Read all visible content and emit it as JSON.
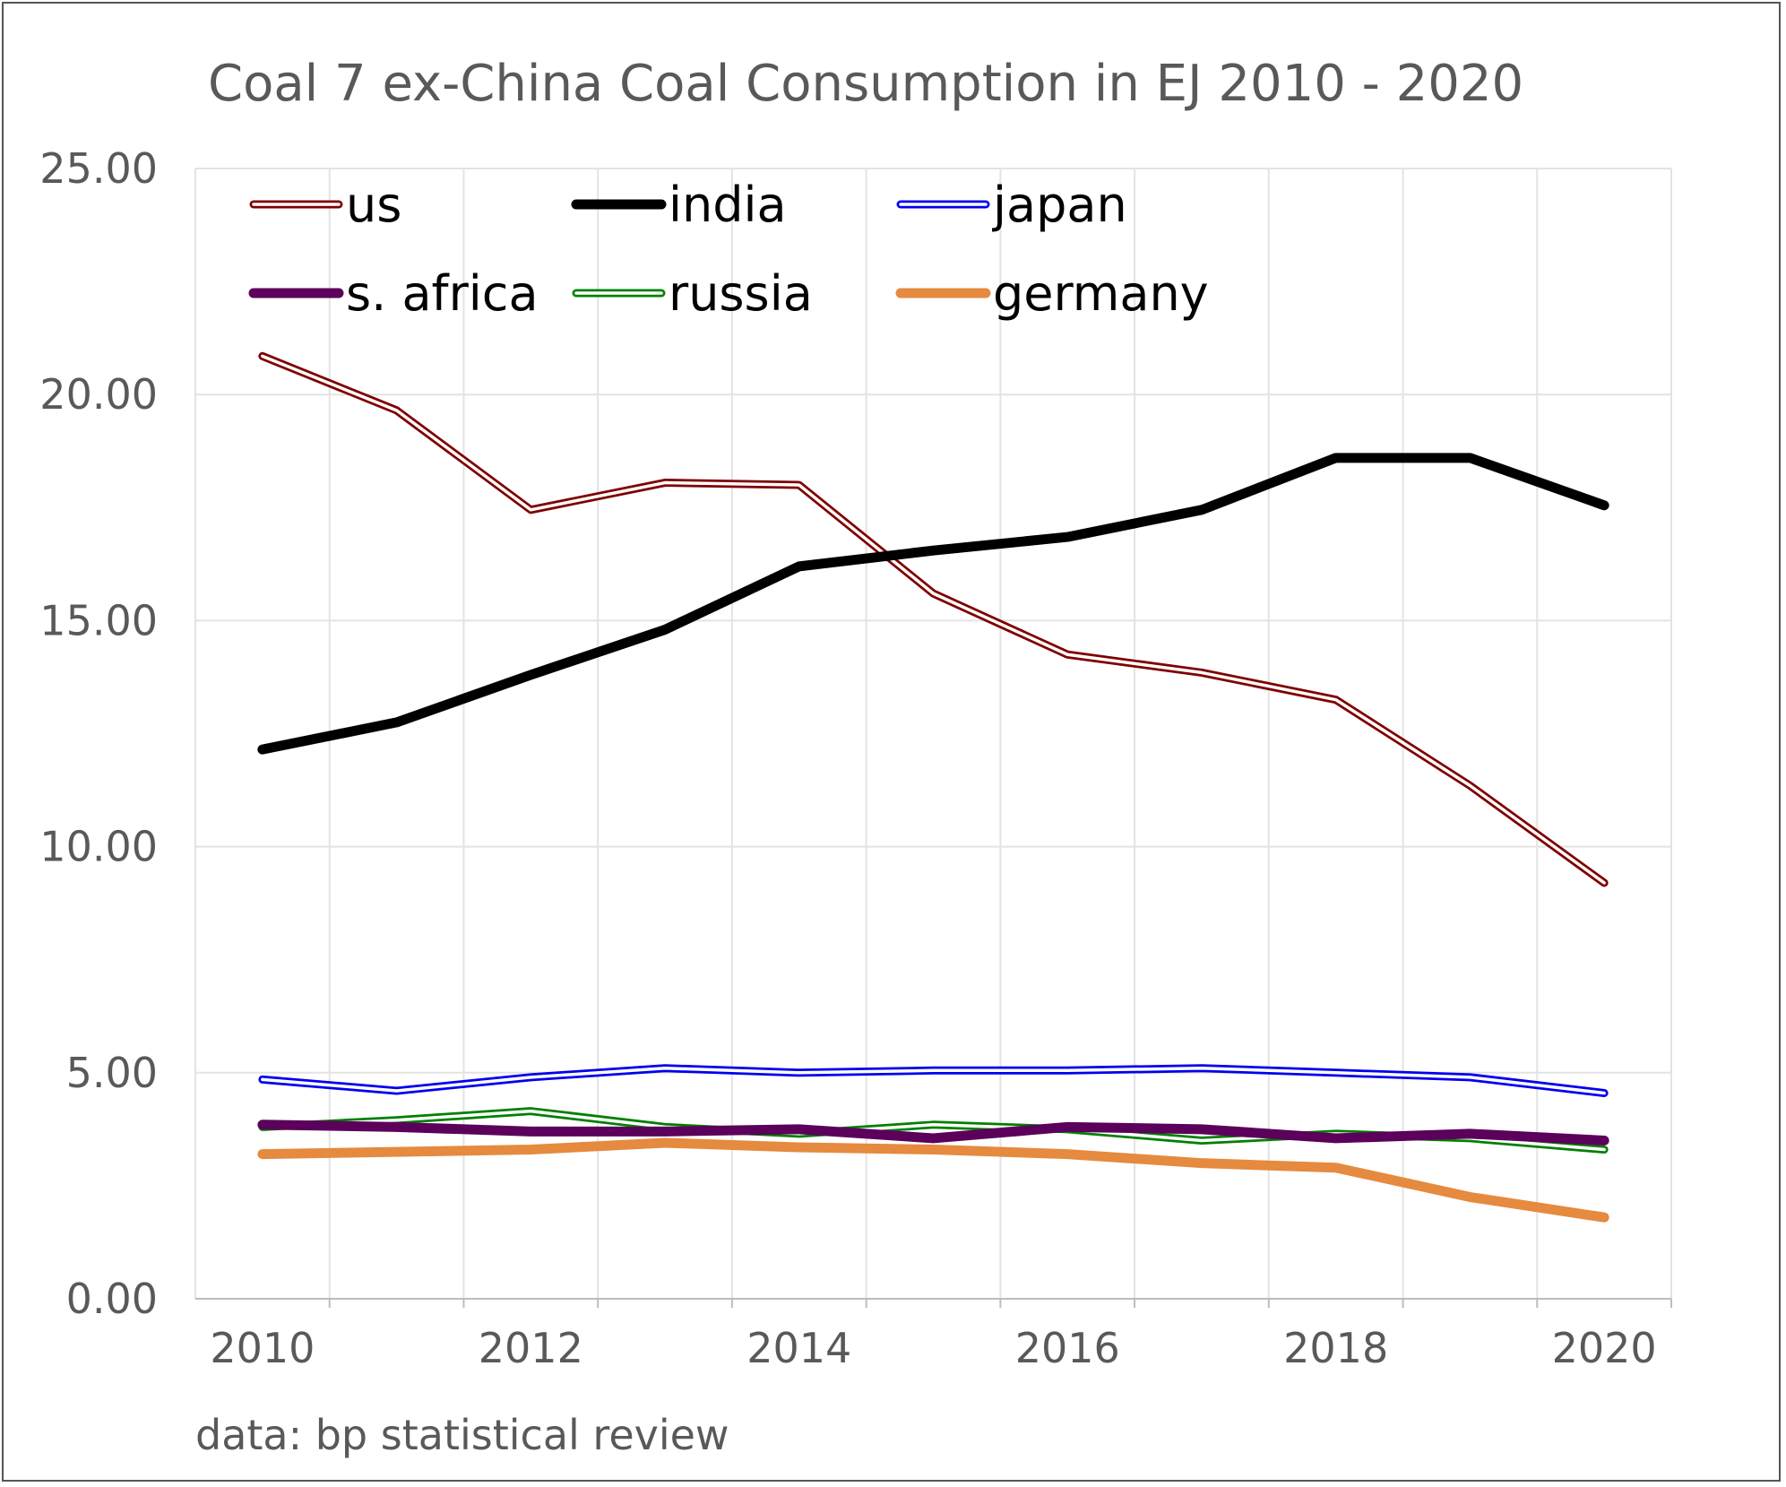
{
  "chart_data": {
    "type": "line",
    "title": "Coal 7 ex-China Coal Consumption in EJ 2010 - 2020",
    "xlabel": "",
    "ylabel": "",
    "source_note": "data: bp statistical review",
    "x": [
      2010,
      2011,
      2012,
      2013,
      2014,
      2015,
      2016,
      2017,
      2018,
      2019,
      2020
    ],
    "xlim": [
      2009.5,
      2020.5
    ],
    "ylim": [
      0,
      25
    ],
    "ytick_labels": [
      "0.00",
      "5.00",
      "10.00",
      "15.00",
      "20.00",
      "25.00"
    ],
    "xtick_labels": [
      "2010",
      "2012",
      "2014",
      "2016",
      "2018",
      "2020"
    ],
    "grid": "on",
    "legend_position": "top-left inside plot",
    "series": [
      {
        "name": "us",
        "color": "#7f0000",
        "style": "double",
        "values": [
          20.85,
          19.65,
          17.45,
          18.05,
          18.0,
          15.6,
          14.25,
          13.85,
          13.25,
          11.35,
          9.2
        ]
      },
      {
        "name": "india",
        "color": "#000000",
        "style": "thick",
        "values": [
          12.15,
          12.75,
          13.8,
          14.8,
          16.2,
          16.55,
          16.85,
          17.45,
          18.6,
          18.6,
          17.55
        ]
      },
      {
        "name": "japan",
        "color": "#0000ee",
        "style": "double",
        "values": [
          4.85,
          4.6,
          4.9,
          5.1,
          5.0,
          5.05,
          5.05,
          5.1,
          5.0,
          4.9,
          4.55
        ]
      },
      {
        "name": "s. africa",
        "color": "#5b005b",
        "style": "thick",
        "values": [
          3.85,
          3.8,
          3.7,
          3.7,
          3.75,
          3.55,
          3.8,
          3.75,
          3.55,
          3.65,
          3.5
        ]
      },
      {
        "name": "russia",
        "color": "#008000",
        "style": "double",
        "values": [
          3.8,
          3.95,
          4.15,
          3.8,
          3.65,
          3.85,
          3.75,
          3.5,
          3.65,
          3.55,
          3.3
        ]
      },
      {
        "name": "germany",
        "color": "#e58a3e",
        "style": "thick",
        "values": [
          3.2,
          3.25,
          3.3,
          3.45,
          3.35,
          3.3,
          3.2,
          3.0,
          2.9,
          2.25,
          1.8
        ]
      }
    ]
  }
}
